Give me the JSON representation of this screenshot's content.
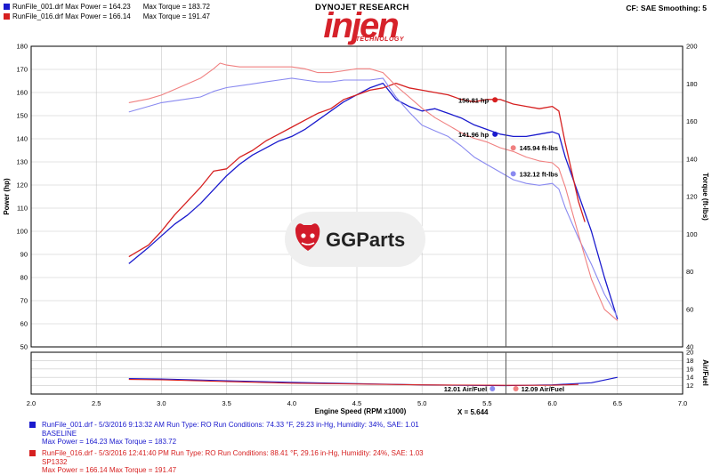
{
  "header": {
    "runs": [
      {
        "label": "RunFile_001.drf Max Power = 164.23",
        "torque": "Max Torque = 183.72",
        "color": "#1a1acd"
      },
      {
        "label": "RunFile_016.drf Max Power = 166.14",
        "torque": "Max Torque = 191.47",
        "color": "#d62020"
      }
    ],
    "brand_title": "DYNOJET RESEARCH",
    "logo_main": "injen",
    "logo_sub": "TECHNOLOGY",
    "cf_text": "CF: SAE  Smoothing: 5"
  },
  "watermark": {
    "text": "GGParts",
    "icon": "gg-devil-icon"
  },
  "chart_data": {
    "type": "line",
    "xlabel": "Engine Speed (RPM x1000)",
    "ylabel_left": "Power (hp)",
    "ylabel_right": "Torque (ft-lbs)",
    "ylabel_af": "Air/Fuel",
    "xlim": [
      2.0,
      7.0
    ],
    "ylim_power": [
      50,
      180
    ],
    "ylim_torque": [
      40,
      200
    ],
    "ylim_af": [
      10,
      20
    ],
    "xticks": [
      "2.0",
      "2.5",
      "3.0",
      "3.5",
      "4.0",
      "4.5",
      "5.0",
      "5.5",
      "6.0",
      "6.5",
      "7.0"
    ],
    "power_ticks": [
      "50",
      "60",
      "70",
      "80",
      "90",
      "100",
      "110",
      "120",
      "130",
      "140",
      "150",
      "160",
      "170",
      "180"
    ],
    "torque_ticks": [
      "40",
      "60",
      "80",
      "100",
      "120",
      "140",
      "160",
      "180",
      "200"
    ],
    "af_ticks": [
      "12",
      "14",
      "16",
      "18",
      "20"
    ],
    "cursor_x": 5.644,
    "cursor_label": "X = 5.644",
    "grid": true,
    "series": [
      {
        "name": "RunFile_001.drf",
        "metric": "power",
        "color": "#1a1acd",
        "x": [
          2.75,
          2.9,
          3.0,
          3.1,
          3.2,
          3.3,
          3.4,
          3.5,
          3.6,
          3.7,
          3.8,
          3.9,
          4.0,
          4.1,
          4.2,
          4.3,
          4.4,
          4.5,
          4.6,
          4.7,
          4.8,
          4.9,
          5.0,
          5.1,
          5.2,
          5.3,
          5.4,
          5.5,
          5.6,
          5.7,
          5.8,
          5.9,
          6.0,
          6.05,
          6.1,
          6.2,
          6.3,
          6.4,
          6.5
        ],
        "y": [
          86,
          93,
          98,
          103,
          107,
          112,
          118,
          124,
          129,
          133,
          136,
          139,
          141,
          144,
          148,
          152,
          156,
          159,
          162,
          164,
          157,
          154,
          152,
          153,
          151,
          149,
          146,
          144,
          142,
          141,
          141,
          142,
          143,
          142,
          132,
          116,
          100,
          80,
          62
        ]
      },
      {
        "name": "RunFile_016.drf",
        "metric": "power",
        "color": "#d62020",
        "x": [
          2.75,
          2.9,
          3.0,
          3.1,
          3.2,
          3.3,
          3.4,
          3.5,
          3.6,
          3.7,
          3.8,
          3.9,
          4.0,
          4.1,
          4.2,
          4.3,
          4.4,
          4.5,
          4.6,
          4.7,
          4.8,
          4.9,
          5.0,
          5.1,
          5.2,
          5.3,
          5.4,
          5.5,
          5.6,
          5.7,
          5.8,
          5.9,
          6.0,
          6.05,
          6.1,
          6.2,
          6.25
        ],
        "y": [
          89,
          94,
          100,
          107,
          113,
          119,
          126,
          127,
          132,
          135,
          139,
          142,
          145,
          148,
          151,
          153,
          157,
          159,
          161,
          162,
          164,
          162,
          161,
          160,
          159,
          157,
          156,
          157,
          157,
          155,
          154,
          153,
          154,
          152,
          138,
          113,
          104
        ]
      },
      {
        "name": "RunFile_001.drf",
        "metric": "torque",
        "color": "#8a8af0",
        "x": [
          2.75,
          2.9,
          3.0,
          3.1,
          3.2,
          3.3,
          3.4,
          3.5,
          3.6,
          3.7,
          3.8,
          3.9,
          4.0,
          4.1,
          4.2,
          4.3,
          4.4,
          4.5,
          4.6,
          4.7,
          4.8,
          4.9,
          5.0,
          5.1,
          5.2,
          5.3,
          5.4,
          5.5,
          5.6,
          5.7,
          5.8,
          5.9,
          6.0,
          6.05,
          6.1,
          6.2,
          6.3,
          6.4,
          6.5
        ],
        "y": [
          165,
          168,
          170,
          171,
          172,
          173,
          176,
          178,
          179,
          180,
          181,
          182,
          183,
          182,
          181,
          181,
          182,
          182,
          182,
          183,
          173,
          165,
          158,
          155,
          152,
          147,
          141,
          137,
          133,
          129,
          127,
          126,
          127,
          124,
          114,
          98,
          84,
          68,
          56
        ]
      },
      {
        "name": "RunFile_016.drf",
        "metric": "torque",
        "color": "#f08080",
        "x": [
          2.75,
          2.9,
          3.0,
          3.1,
          3.2,
          3.3,
          3.4,
          3.45,
          3.5,
          3.6,
          3.7,
          3.8,
          3.9,
          4.0,
          4.1,
          4.2,
          4.3,
          4.4,
          4.5,
          4.6,
          4.7,
          4.8,
          4.9,
          5.0,
          5.1,
          5.2,
          5.3,
          5.4,
          5.5,
          5.6,
          5.7,
          5.8,
          5.9,
          6.0,
          6.05,
          6.1,
          6.2,
          6.3,
          6.4,
          6.5
        ],
        "y": [
          170,
          172,
          174,
          177,
          180,
          183,
          188,
          191,
          190,
          189,
          189,
          189,
          189,
          189,
          188,
          186,
          186,
          187,
          188,
          188,
          186,
          179,
          173,
          167,
          162,
          158,
          154,
          151,
          149,
          146,
          144,
          141,
          139,
          138,
          135,
          125,
          100,
          76,
          60,
          54
        ]
      },
      {
        "name": "RunFile_001.drf",
        "metric": "air_fuel",
        "color": "#1a1acd",
        "x": [
          2.75,
          3.0,
          3.5,
          4.0,
          4.5,
          5.0,
          5.5,
          5.644,
          6.0,
          6.3,
          6.5
        ],
        "y": [
          13.7,
          13.6,
          13.2,
          12.8,
          12.5,
          12.2,
          12.05,
          12.01,
          12.2,
          12.7,
          14.0
        ]
      },
      {
        "name": "RunFile_016.drf",
        "metric": "air_fuel",
        "color": "#d62020",
        "x": [
          2.75,
          3.0,
          3.5,
          4.0,
          4.5,
          5.0,
          5.5,
          5.644,
          6.0,
          6.2
        ],
        "y": [
          13.5,
          13.4,
          13.0,
          12.6,
          12.4,
          12.2,
          12.1,
          12.09,
          12.1,
          12.3
        ]
      }
    ],
    "cursor_labels": [
      {
        "text": "156.81 hp",
        "color": "#d62020",
        "metric": "power",
        "value": 156.81
      },
      {
        "text": "141.96 hp",
        "color": "#1a1acd",
        "metric": "power",
        "value": 141.96
      },
      {
        "text": "145.94 ft-lbs",
        "color": "#f08080",
        "metric": "torque",
        "value": 145.94
      },
      {
        "text": "132.12 ft-lbs",
        "color": "#8a8af0",
        "metric": "torque",
        "value": 132.12
      },
      {
        "text": "12.01 Air/Fuel",
        "color": "#8a8af0",
        "metric": "air_fuel",
        "value": 12.01
      },
      {
        "text": "12.09 Air/Fuel",
        "color": "#f08080",
        "metric": "air_fuel",
        "value": 12.09
      }
    ]
  },
  "legend": [
    {
      "line1": "RunFile_001.drf - 5/3/2016 9:13:32 AM  Run Type: RO  Run Conditions: 74.33 °F, 29.23 in-Hg,  Humidity:  34%, SAE: 1.01",
      "line2": "BASELINE",
      "line3": "Max Power = 164.23   Max Torque = 183.72",
      "color": "#1a1acd"
    },
    {
      "line1": "RunFile_016.drf - 5/3/2016 12:41:40 PM  Run Type: RO  Run Conditions: 88.41 °F, 29.16 in-Hg,  Humidity:  24%, SAE: 1.03",
      "line2": "SP1332",
      "line3": "Max Power = 166.14   Max Torque = 191.47",
      "color": "#d62020"
    }
  ]
}
